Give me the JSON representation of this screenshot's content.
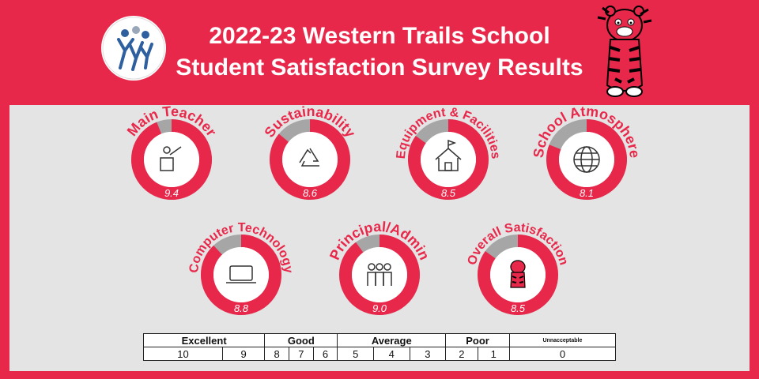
{
  "header": {
    "title_line1": "2022-23 Western Trails School",
    "title_line2": "Student Satisfaction Survey Results"
  },
  "colors": {
    "accent": "#e8284a",
    "remaining": "#a6a6a6",
    "panel": "#e4e4e4",
    "white": "#ffffff"
  },
  "chart_data": {
    "type": "donut",
    "max": 10,
    "categories": [
      "Main Teacher",
      "Sustainability",
      "Equipment & Facilities",
      "School Atmosphere",
      "Computer Technology",
      "Principal/Admin",
      "Overall Satisfaction"
    ],
    "values": [
      9.4,
      8.6,
      8.5,
      8.1,
      8.8,
      9.0,
      8.5
    ],
    "value_labels": [
      "9.4",
      "8.6",
      "8.5",
      "8.1",
      "8.8",
      "9.0",
      "8.5"
    ],
    "icons": [
      "teacher-icon",
      "recycle-icon",
      "schoolhouse-icon",
      "globe-icon",
      "laptop-icon",
      "people-icon",
      "tiger-mascot-icon"
    ]
  },
  "scale": {
    "groups": [
      "Excellent",
      "Good",
      "Average",
      "Poor",
      "Unnacceptable"
    ],
    "numbers": [
      "10",
      "9",
      "8",
      "7",
      "6",
      "5",
      "4",
      "3",
      "2",
      "1",
      "0"
    ]
  }
}
